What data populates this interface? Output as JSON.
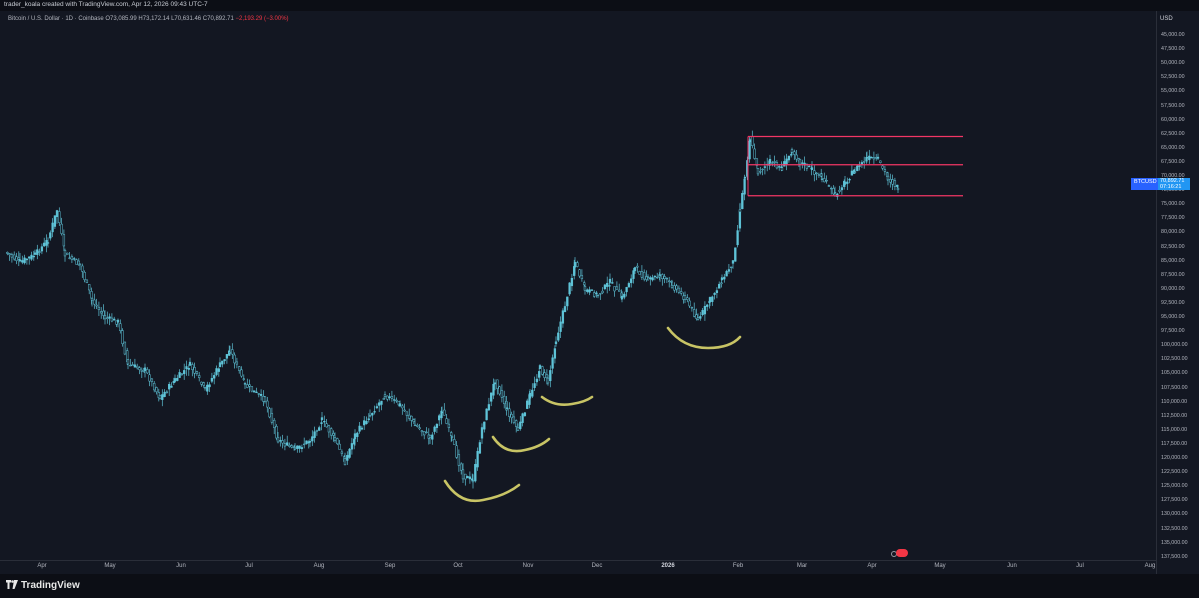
{
  "header": {
    "attribution": "trader_koala created with TradingView.com, Apr 12, 2026 09:43 UTC-7"
  },
  "legend": {
    "symbol_title": "Bitcoin / U.S. Dollar · 1D · Coinbase",
    "ohlc": "O73,085.99 H73,172.14 L70,631.46 C70,892.71",
    "change": "−2,193.29 (−3.00%)"
  },
  "axis": {
    "currency": "USD",
    "y_ticks": [
      "45,000.00",
      "47,500.00",
      "50,000.00",
      "52,500.00",
      "55,000.00",
      "57,500.00",
      "60,000.00",
      "62,500.00",
      "65,000.00",
      "67,500.00",
      "70,000.00",
      "72,500.00",
      "75,000.00",
      "77,500.00",
      "80,000.00",
      "82,500.00",
      "85,000.00",
      "87,500.00",
      "90,000.00",
      "92,500.00",
      "95,000.00",
      "97,500.00",
      "100,000.00",
      "102,500.00",
      "105,000.00",
      "107,500.00",
      "110,000.00",
      "112,500.00",
      "115,000.00",
      "117,500.00",
      "120,000.00",
      "122,500.00",
      "125,000.00",
      "127,500.00",
      "130,000.00",
      "132,500.00",
      "135,000.00",
      "137,500.00"
    ],
    "x_ticks": [
      {
        "label": "Apr",
        "bold": false
      },
      {
        "label": "May",
        "bold": false
      },
      {
        "label": "Jun",
        "bold": false
      },
      {
        "label": "Jul",
        "bold": false
      },
      {
        "label": "Aug",
        "bold": false
      },
      {
        "label": "Sep",
        "bold": false
      },
      {
        "label": "Oct",
        "bold": false
      },
      {
        "label": "Nov",
        "bold": false
      },
      {
        "label": "Dec",
        "bold": false
      },
      {
        "label": "2026",
        "bold": true
      },
      {
        "label": "Feb",
        "bold": false
      },
      {
        "label": "Mar",
        "bold": false
      },
      {
        "label": "Apr",
        "bold": false
      },
      {
        "label": "May",
        "bold": false
      },
      {
        "label": "Jun",
        "bold": false
      },
      {
        "label": "Jul",
        "bold": false
      },
      {
        "label": "Aug",
        "bold": false
      }
    ]
  },
  "price_tag": {
    "symbol": "BTCUSD",
    "price": "70,892.71",
    "countdown": "07:16:21"
  },
  "colors": {
    "background": "#131722",
    "candle": "#5fc4d8",
    "level_line": "#f23665",
    "annotation": "#c8c465",
    "tag": "#2196f3"
  },
  "levels": [
    63000,
    68000,
    73500
  ],
  "footer": {
    "brand": "TradingView"
  }
}
